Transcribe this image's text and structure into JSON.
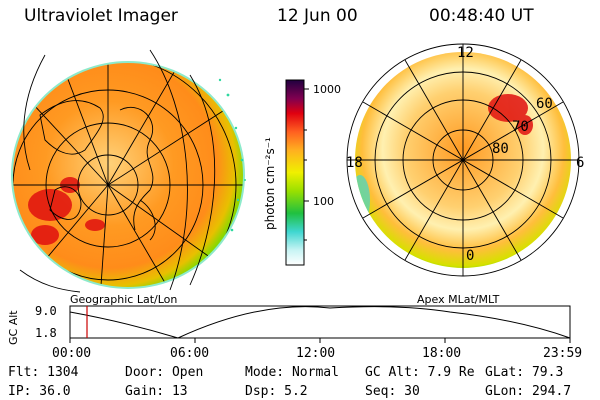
{
  "header": {
    "instrument": "Ultraviolet Imager",
    "date": "12 Jun 00",
    "time": "00:48:40 UT"
  },
  "left_panel": {
    "caption": "Geographic Lat/Lon"
  },
  "right_panel": {
    "caption": "Apex MLat/MLT",
    "mlt_labels": {
      "top": "12",
      "left": "18",
      "right": "6",
      "bottom": "0"
    },
    "lat_labels": [
      "60",
      "70",
      "80"
    ]
  },
  "colorbar": {
    "unit_label": "photon cm⁻²s⁻¹",
    "ticks": [
      "1000",
      "100"
    ]
  },
  "altitude_plot": {
    "ylabel": "GC Alt",
    "yticks": [
      "9.0",
      "1.8"
    ],
    "xticks": [
      "00:00",
      "06:00",
      "12:00",
      "18:00",
      "23:59"
    ],
    "current_marker_fraction": 0.034
  },
  "info": {
    "flt": "Flt: 1304",
    "ip": "IP: 36.0",
    "door": "Door: Open",
    "gain": "Gain: 13",
    "mode": "Mode: Normal",
    "dsp": "Dsp:    5.2",
    "gcalt": "GC Alt: 7.9 Re",
    "seq": "Seq: 30",
    "glat": "GLat:  79.3",
    "glon": "GLon: 294.7"
  },
  "colors": {
    "aurora_core": "#ff8c1a",
    "aurora_edge": "#2fd800",
    "marker_line": "#cc0000"
  }
}
